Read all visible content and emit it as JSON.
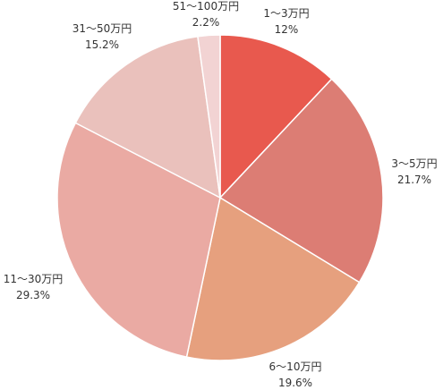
{
  "chart_data": {
    "type": "pie",
    "title": "",
    "start_angle_deg": 0,
    "direction": "clockwise",
    "slices": [
      {
        "label": "1〜3万円",
        "value": 12.0,
        "display": "12%",
        "color": "#E8594E"
      },
      {
        "label": "3〜5万円",
        "value": 21.7,
        "display": "21.7%",
        "color": "#DC7D74"
      },
      {
        "label": "6〜10万円",
        "value": 19.6,
        "display": "19.6%",
        "color": "#E6A07E"
      },
      {
        "label": "11〜30万円",
        "value": 29.3,
        "display": "29.3%",
        "color": "#EAAAA3"
      },
      {
        "label": "31〜50万円",
        "value": 15.2,
        "display": "15.2%",
        "color": "#EAC1BC"
      },
      {
        "label": "51〜100万円",
        "value": 2.2,
        "display": "2.2%",
        "color": "#F2D3D3"
      }
    ]
  }
}
